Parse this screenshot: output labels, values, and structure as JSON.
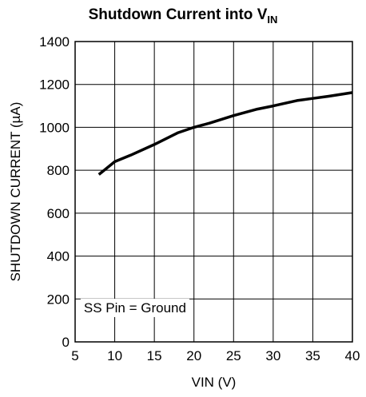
{
  "chart_data": {
    "type": "line",
    "title": "Shutdown Current into V",
    "title_subscript": "IN",
    "xlabel": "VIN (V)",
    "ylabel": "SHUTDOWN CURRENT (µA)",
    "xlim": [
      5,
      40
    ],
    "ylim": [
      0,
      1400
    ],
    "xticks": [
      5,
      10,
      15,
      20,
      25,
      30,
      35,
      40
    ],
    "yticks": [
      0,
      200,
      400,
      600,
      800,
      1000,
      1200,
      1400
    ],
    "grid": true,
    "annotation": "SS Pin = Ground",
    "series": [
      {
        "x": [
          8,
          10,
          12,
          15,
          18,
          20,
          22,
          25,
          28,
          30,
          33,
          35,
          37,
          40
        ],
        "y": [
          780,
          840,
          870,
          920,
          975,
          1000,
          1020,
          1055,
          1085,
          1100,
          1125,
          1135,
          1145,
          1162
        ]
      }
    ]
  }
}
